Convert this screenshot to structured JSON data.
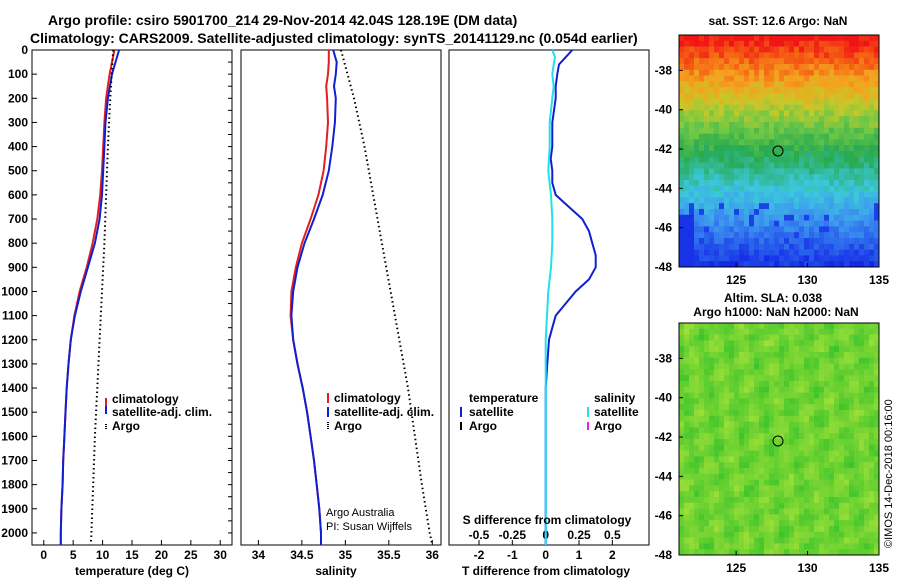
{
  "title": {
    "line1": "Argo profile: csiro 5901700_214 29-Nov-2014 42.04S 128.19E (DM data)",
    "line2": "Climatology: CARS2009. Satellite-adjusted climatology: synTS_20141129.nc (0.054d earlier)"
  },
  "colors": {
    "climatology": "#e02020",
    "satellite": "#1020d0",
    "argo": "#000000",
    "sal_satellite": "#20e0f0",
    "sal_argo": "#e020e0"
  },
  "credits": {
    "line1": "Argo Australia",
    "line2": "PI: Susan Wijffels"
  },
  "watermark": "©IMOS 14-Dec-2018 00:16:00",
  "chart_data": [
    {
      "type": "line",
      "name": "temperature",
      "xlabel": "temperature (deg C)",
      "xlim": [
        -2,
        32
      ],
      "xticks": [
        "0",
        "5",
        "10",
        "15",
        "20",
        "25",
        "30"
      ],
      "ylim": [
        2050,
        0
      ],
      "yticks": [
        "0",
        "100",
        "200",
        "300",
        "400",
        "500",
        "600",
        "700",
        "800",
        "900",
        "1000",
        "1100",
        "1200",
        "1300",
        "1400",
        "1500",
        "1600",
        "1700",
        "1800",
        "1900",
        "2000"
      ],
      "legend": [
        "climatology",
        "satellite-adj. clim.",
        "Argo"
      ],
      "series": [
        {
          "name": "climatology",
          "depth": [
            0,
            50,
            100,
            200,
            300,
            400,
            500,
            600,
            700,
            800,
            900,
            1000,
            1100,
            1200,
            1300,
            1400,
            1500,
            1600,
            1700,
            1800,
            1900,
            2000,
            2050
          ],
          "values": [
            12.0,
            11.6,
            11.2,
            10.6,
            10.3,
            10.1,
            9.9,
            9.6,
            9.1,
            8.3,
            7.3,
            6.1,
            5.2,
            4.6,
            4.2,
            3.9,
            3.7,
            3.5,
            3.3,
            3.2,
            3.0,
            2.9,
            2.9
          ]
        },
        {
          "name": "satellite-adj. clim.",
          "depth": [
            0,
            50,
            100,
            200,
            300,
            400,
            500,
            600,
            700,
            800,
            900,
            1000,
            1100,
            1200,
            1300,
            1400,
            1500,
            1600,
            1700,
            1800,
            1900,
            2000,
            2050
          ],
          "values": [
            12.8,
            12.2,
            11.6,
            10.9,
            10.5,
            10.3,
            10.1,
            9.9,
            9.5,
            8.7,
            7.5,
            6.3,
            5.3,
            4.6,
            4.2,
            3.9,
            3.7,
            3.5,
            3.3,
            3.2,
            3.0,
            2.9,
            2.9
          ]
        },
        {
          "name": "Argo",
          "depth": [
            0,
            200,
            400,
            600,
            800,
            1000,
            1200,
            1400,
            1600,
            1800,
            2000,
            2050
          ],
          "values": [
            11.8,
            11.3,
            10.9,
            10.6,
            10.3,
            9.9,
            9.5,
            9.1,
            8.7,
            8.4,
            8.1,
            8.0
          ]
        }
      ]
    },
    {
      "type": "line",
      "name": "salinity",
      "xlabel": "salinity",
      "xlim": [
        33.8,
        36.1
      ],
      "xticks": [
        "34",
        "34.5",
        "35",
        "35.5",
        "36"
      ],
      "ylim": [
        2050,
        0
      ],
      "legend": [
        "climatology",
        "satellite-adj. clim.",
        "Argo"
      ],
      "series": [
        {
          "name": "climatology",
          "depth": [
            0,
            50,
            100,
            150,
            200,
            300,
            400,
            500,
            600,
            700,
            800,
            900,
            1000,
            1100,
            1200,
            1300,
            1400,
            1500,
            1600,
            1700,
            1800,
            1900,
            2000,
            2050
          ],
          "values": [
            34.81,
            34.81,
            34.8,
            34.78,
            34.79,
            34.8,
            34.78,
            34.75,
            34.69,
            34.6,
            34.5,
            34.43,
            34.38,
            34.37,
            34.4,
            34.45,
            34.51,
            34.56,
            34.6,
            34.64,
            34.67,
            34.7,
            34.72,
            34.72
          ]
        },
        {
          "name": "satellite-adj. clim.",
          "depth": [
            0,
            50,
            100,
            150,
            200,
            300,
            400,
            500,
            600,
            700,
            800,
            900,
            1000,
            1100,
            1200,
            1300,
            1400,
            1500,
            1600,
            1700,
            1800,
            1900,
            2000,
            2050
          ],
          "values": [
            34.86,
            34.9,
            34.89,
            34.87,
            34.89,
            34.88,
            34.85,
            34.81,
            34.74,
            34.64,
            34.53,
            34.45,
            34.4,
            34.38,
            34.4,
            34.45,
            34.51,
            34.56,
            34.6,
            34.64,
            34.67,
            34.7,
            34.72,
            34.72
          ]
        },
        {
          "name": "Argo",
          "depth": [
            0,
            200,
            400,
            600,
            800,
            1000,
            1200,
            1400,
            1600,
            1800,
            2000,
            2050
          ],
          "values": [
            34.95,
            35.1,
            35.22,
            35.32,
            35.42,
            35.52,
            35.62,
            35.72,
            35.8,
            35.88,
            35.97,
            36.0
          ]
        }
      ]
    },
    {
      "type": "line",
      "name": "differences",
      "xlabel": "T difference from climatology",
      "xlabel_top": "S difference from climatology",
      "xlim": [
        -2.9,
        3.1
      ],
      "xticks": [
        "-2",
        "-1",
        "0",
        "1",
        "2"
      ],
      "xticks_top": [
        "-0.5",
        "-0.25",
        "0",
        "0.25",
        "0.5"
      ],
      "ylim": [
        2050,
        0
      ],
      "legend_left_title": "temperature",
      "legend_right_title": "salinity",
      "legend_left": [
        "satellite",
        "Argo"
      ],
      "legend_right": [
        "satellite",
        "Argo"
      ],
      "series": [
        {
          "name": "T satellite",
          "depth": [
            0,
            30,
            60,
            100,
            150,
            200,
            300,
            400,
            450,
            500,
            550,
            600,
            650,
            700,
            750,
            800,
            850,
            900,
            950,
            1000,
            1050,
            1100,
            1150,
            1200,
            1300,
            1400,
            1600,
            1800,
            2000,
            2050
          ],
          "values": [
            0.8,
            0.6,
            0.4,
            0.35,
            0.3,
            0.3,
            0.2,
            0.2,
            0.15,
            0.2,
            0.2,
            0.3,
            0.7,
            1.1,
            1.3,
            1.4,
            1.5,
            1.5,
            1.3,
            0.9,
            0.6,
            0.3,
            0.2,
            0.1,
            0.05,
            0.0,
            0.0,
            0.0,
            0.0,
            0.0
          ]
        },
        {
          "name": "S satellite",
          "depth": [
            0,
            30,
            60,
            100,
            150,
            200,
            300,
            400,
            500,
            600,
            700,
            800,
            900,
            1000,
            1100,
            1200,
            1400,
            1600,
            1800,
            2000,
            2050
          ],
          "values": [
            0.05,
            0.07,
            0.06,
            0.05,
            0.06,
            0.05,
            0.03,
            0.03,
            0.02,
            0.04,
            0.05,
            0.05,
            0.04,
            0.02,
            0.01,
            0.0,
            0.0,
            0.0,
            0.0,
            0.0,
            0.0
          ]
        }
      ]
    },
    {
      "type": "heatmap",
      "name": "sst-map",
      "title": "sat. SST: 12.6 Argo: NaN",
      "xticks": [
        "125",
        "130",
        "135"
      ],
      "yticks": [
        "-38",
        "-40",
        "-42",
        "-44",
        "-46",
        "-48"
      ],
      "xlim": [
        121,
        135
      ],
      "ylim": [
        -48,
        -36.2
      ],
      "marker": {
        "lon": 128.19,
        "lat": -42.04
      }
    },
    {
      "type": "heatmap",
      "name": "sla-map",
      "title": "Altim. SLA: 0.038",
      "subtitle": "Argo h1000: NaN h2000: NaN",
      "xticks": [
        "125",
        "130",
        "135"
      ],
      "yticks": [
        "-38",
        "-40",
        "-42",
        "-44",
        "-46",
        "-48"
      ],
      "xlim": [
        121,
        135
      ],
      "ylim": [
        -48,
        -36.2
      ],
      "marker": {
        "lon": 128.19,
        "lat": -42.04
      }
    }
  ]
}
